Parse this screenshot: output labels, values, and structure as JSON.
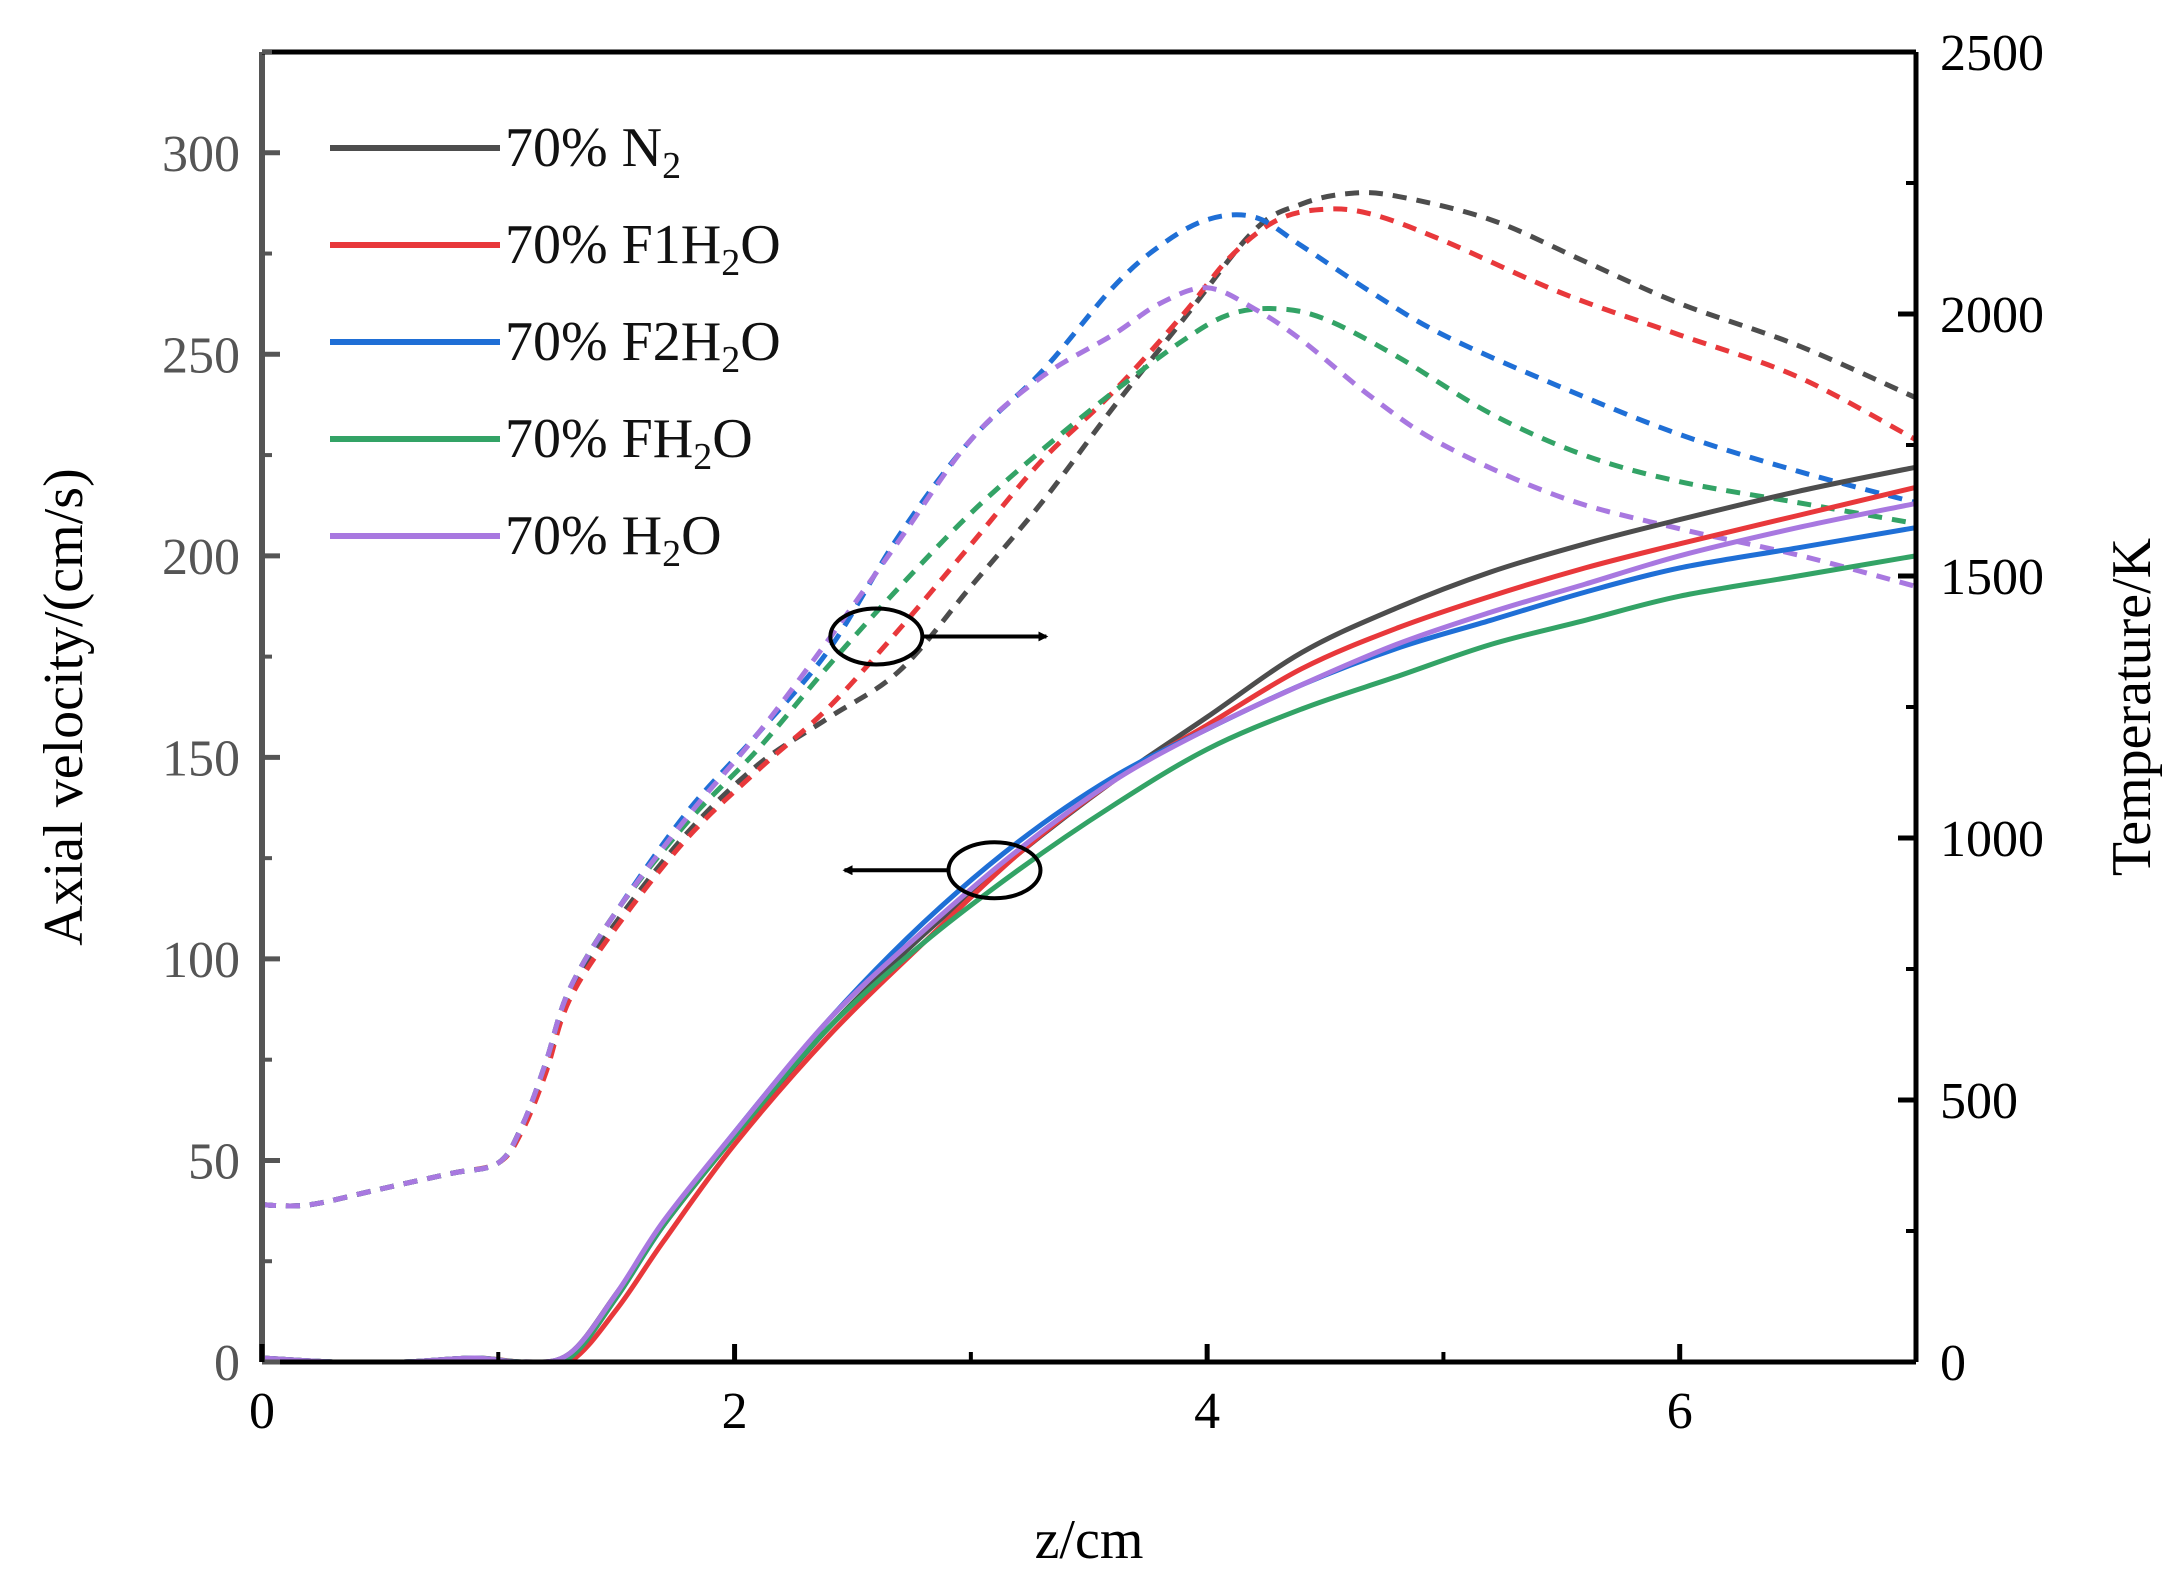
{
  "chart_data": {
    "type": "line",
    "xlabel": "z/cm",
    "ylabel": "Axial velocity/(cm/s)",
    "y2label": "Temperature/K",
    "xlim": [
      0,
      7
    ],
    "ylim": [
      0,
      325
    ],
    "y2lim": [
      0,
      2500
    ],
    "x_ticks": [
      0,
      2,
      4,
      6
    ],
    "y_ticks": [
      0,
      50,
      100,
      150,
      200,
      250,
      300
    ],
    "y2_ticks": [
      0,
      500,
      1000,
      1500,
      2000,
      2500
    ],
    "legend_position": "top-left",
    "annotations": [
      {
        "type": "ellipse-arrow",
        "x": 2.6,
        "y": 180,
        "direction": "right",
        "meaning": "dashed curves use right axis"
      },
      {
        "type": "ellipse-arrow",
        "x": 3.1,
        "y": 122,
        "direction": "left",
        "meaning": "solid curves use left axis"
      }
    ],
    "series": [
      {
        "name": "70% N2",
        "label_main": "70% N",
        "label_sub": "2",
        "label_tail": "",
        "color": "#4d4d4d",
        "velocity": {
          "x": [
            0,
            0.3,
            0.6,
            0.9,
            1.1,
            1.3,
            1.5,
            1.7,
            2.0,
            2.4,
            2.8,
            3.2,
            3.6,
            4.0,
            4.4,
            4.8,
            5.2,
            5.6,
            6.0,
            6.5,
            7.0
          ],
          "y": [
            1,
            0,
            0,
            1,
            0,
            2,
            17,
            34,
            56,
            83,
            106,
            126,
            144,
            160,
            176,
            187,
            196,
            203,
            209,
            216,
            222
          ]
        },
        "temperature": {
          "x": [
            0,
            0.2,
            0.5,
            0.8,
            1.0,
            1.1,
            1.2,
            1.3,
            1.5,
            1.8,
            2.1,
            2.4,
            2.7,
            3.0,
            3.3,
            3.6,
            3.9,
            4.2,
            4.4,
            4.6,
            4.8,
            5.2,
            5.6,
            6.0,
            6.5,
            7.0
          ],
          "y": [
            300,
            300,
            330,
            360,
            380,
            450,
            560,
            700,
            840,
            1010,
            1140,
            1230,
            1320,
            1480,
            1640,
            1820,
            1990,
            2160,
            2210,
            2230,
            2225,
            2180,
            2100,
            2020,
            1940,
            1840
          ]
        }
      },
      {
        "name": "70% F1H2O",
        "label_main": "70% F1H",
        "label_sub": "2",
        "label_tail": "O",
        "color": "#e8383b",
        "velocity": {
          "x": [
            0,
            0.3,
            0.6,
            0.9,
            1.1,
            1.3,
            1.5,
            1.7,
            2.0,
            2.4,
            2.8,
            3.2,
            3.6,
            4.0,
            4.4,
            4.8,
            5.2,
            5.6,
            6.0,
            6.5,
            7.0
          ],
          "y": [
            1,
            0,
            0,
            1,
            0,
            0,
            13,
            30,
            54,
            81,
            104,
            126,
            144,
            158,
            172,
            182,
            190,
            197,
            203,
            210,
            217
          ]
        },
        "temperature": {
          "x": [
            0,
            0.2,
            0.5,
            0.8,
            1.0,
            1.1,
            1.2,
            1.3,
            1.5,
            1.8,
            2.1,
            2.4,
            2.7,
            3.0,
            3.3,
            3.6,
            3.9,
            4.1,
            4.3,
            4.5,
            4.7,
            5.0,
            5.5,
            6.0,
            6.5,
            7.0
          ],
          "y": [
            300,
            300,
            330,
            360,
            380,
            440,
            550,
            690,
            830,
            1000,
            1130,
            1250,
            1400,
            1560,
            1720,
            1850,
            2000,
            2110,
            2180,
            2200,
            2190,
            2140,
            2040,
            1960,
            1880,
            1760
          ]
        }
      },
      {
        "name": "70% F2H2O",
        "label_main": "70% F2H",
        "label_sub": "2",
        "label_tail": "O",
        "color": "#1f6fd6",
        "velocity": {
          "x": [
            0,
            0.3,
            0.6,
            0.9,
            1.1,
            1.3,
            1.5,
            1.7,
            2.0,
            2.4,
            2.8,
            3.2,
            3.6,
            4.0,
            4.4,
            4.8,
            5.2,
            5.6,
            6.0,
            6.5,
            7.0
          ],
          "y": [
            1,
            0,
            0,
            1,
            0,
            1,
            16,
            34,
            57,
            85,
            109,
            129,
            145,
            157,
            168,
            177,
            184,
            191,
            197,
            202,
            207
          ]
        },
        "temperature": {
          "x": [
            0,
            0.2,
            0.5,
            0.8,
            1.0,
            1.1,
            1.2,
            1.3,
            1.5,
            1.8,
            2.1,
            2.4,
            2.7,
            3.0,
            3.3,
            3.6,
            3.8,
            4.0,
            4.2,
            4.4,
            4.7,
            5.0,
            5.5,
            6.0,
            6.5,
            7.0
          ],
          "y": [
            300,
            300,
            330,
            360,
            380,
            450,
            570,
            710,
            860,
            1050,
            1200,
            1360,
            1580,
            1760,
            1890,
            2050,
            2130,
            2180,
            2185,
            2130,
            2040,
            1960,
            1860,
            1770,
            1700,
            1640
          ]
        }
      },
      {
        "name": "70% FH2O",
        "label_main": "70% FH",
        "label_sub": "2",
        "label_tail": "O",
        "color": "#33a366",
        "velocity": {
          "x": [
            0,
            0.3,
            0.6,
            0.9,
            1.1,
            1.3,
            1.5,
            1.7,
            2.0,
            2.4,
            2.8,
            3.2,
            3.6,
            4.0,
            4.4,
            4.8,
            5.2,
            5.6,
            6.0,
            6.5,
            7.0
          ],
          "y": [
            1,
            0,
            0,
            1,
            0,
            1,
            16,
            34,
            56,
            83,
            104,
            122,
            138,
            152,
            162,
            170,
            178,
            184,
            190,
            195,
            200
          ]
        },
        "temperature": {
          "x": [
            0,
            0.2,
            0.5,
            0.8,
            1.0,
            1.1,
            1.2,
            1.3,
            1.5,
            1.8,
            2.1,
            2.4,
            2.7,
            3.0,
            3.3,
            3.6,
            3.9,
            4.1,
            4.3,
            4.5,
            4.8,
            5.2,
            5.6,
            6.0,
            6.5,
            7.0
          ],
          "y": [
            300,
            300,
            330,
            360,
            380,
            450,
            570,
            710,
            860,
            1030,
            1170,
            1330,
            1480,
            1620,
            1740,
            1850,
            1950,
            2000,
            2010,
            1990,
            1920,
            1810,
            1730,
            1680,
            1640,
            1600
          ]
        }
      },
      {
        "name": "70% H2O",
        "label_main": "70% H",
        "label_sub": "2",
        "label_tail": "O",
        "color": "#a878e0",
        "velocity": {
          "x": [
            0,
            0.3,
            0.6,
            0.9,
            1.1,
            1.3,
            1.5,
            1.7,
            2.0,
            2.4,
            2.8,
            3.2,
            3.6,
            4.0,
            4.4,
            4.8,
            5.2,
            5.6,
            6.0,
            6.5,
            7.0
          ],
          "y": [
            1,
            0,
            0,
            1,
            0,
            2,
            17,
            35,
            57,
            85,
            107,
            127,
            144,
            157,
            168,
            178,
            186,
            193,
            200,
            207,
            213
          ]
        },
        "temperature": {
          "x": [
            0,
            0.2,
            0.5,
            0.8,
            1.0,
            1.1,
            1.2,
            1.3,
            1.5,
            1.8,
            2.1,
            2.4,
            2.7,
            3.0,
            3.3,
            3.6,
            3.8,
            4.0,
            4.2,
            4.4,
            4.7,
            5.0,
            5.5,
            6.0,
            6.5,
            7.0
          ],
          "y": [
            300,
            300,
            330,
            360,
            380,
            450,
            570,
            710,
            860,
            1040,
            1200,
            1380,
            1570,
            1760,
            1880,
            1960,
            2020,
            2050,
            2010,
            1950,
            1840,
            1750,
            1650,
            1590,
            1540,
            1480
          ]
        }
      }
    ]
  }
}
